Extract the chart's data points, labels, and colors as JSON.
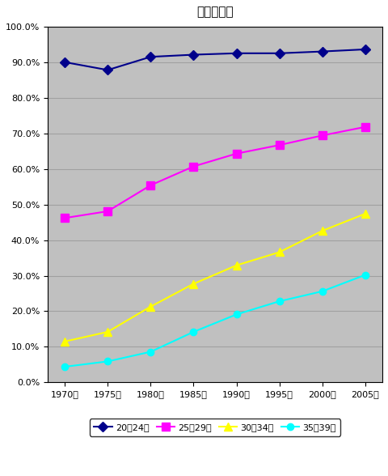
{
  "title": "男性未婚率",
  "years": [
    1970,
    1975,
    1980,
    1985,
    1990,
    1995,
    2000,
    2005
  ],
  "series": [
    {
      "label": "20～24歳",
      "values": [
        0.9,
        0.878,
        0.915,
        0.921,
        0.925,
        0.925,
        0.93,
        0.936
      ],
      "color": "#00008B",
      "marker": "D",
      "markersize": 6,
      "linewidth": 1.5
    },
    {
      "label": "25～29歳",
      "values": [
        0.462,
        0.481,
        0.554,
        0.607,
        0.643,
        0.667,
        0.694,
        0.718
      ],
      "color": "#FF00FF",
      "marker": "s",
      "markersize": 7,
      "linewidth": 1.5
    },
    {
      "label": "30～34歳",
      "values": [
        0.115,
        0.142,
        0.213,
        0.277,
        0.329,
        0.366,
        0.426,
        0.474
      ],
      "color": "#FFFF00",
      "marker": "^",
      "markersize": 7,
      "linewidth": 1.5
    },
    {
      "label": "35～39歳",
      "values": [
        0.044,
        0.059,
        0.086,
        0.142,
        0.191,
        0.228,
        0.256,
        0.302
      ],
      "color": "#00FFFF",
      "marker": "o",
      "markersize": 6,
      "linewidth": 1.5
    }
  ],
  "ylim": [
    0.0,
    1.0
  ],
  "ytick_values": [
    0.0,
    0.1,
    0.2,
    0.3,
    0.4,
    0.5,
    0.6,
    0.7,
    0.8,
    0.9,
    1.0
  ],
  "plot_bg_color": "#C0C0C0",
  "outer_bg_color": "#FFFFFF",
  "grid_color": "#A0A0A0",
  "title_fontsize": 11,
  "tick_fontsize": 8,
  "legend_fontsize": 8,
  "xlim_left": 1968,
  "xlim_right": 2007
}
